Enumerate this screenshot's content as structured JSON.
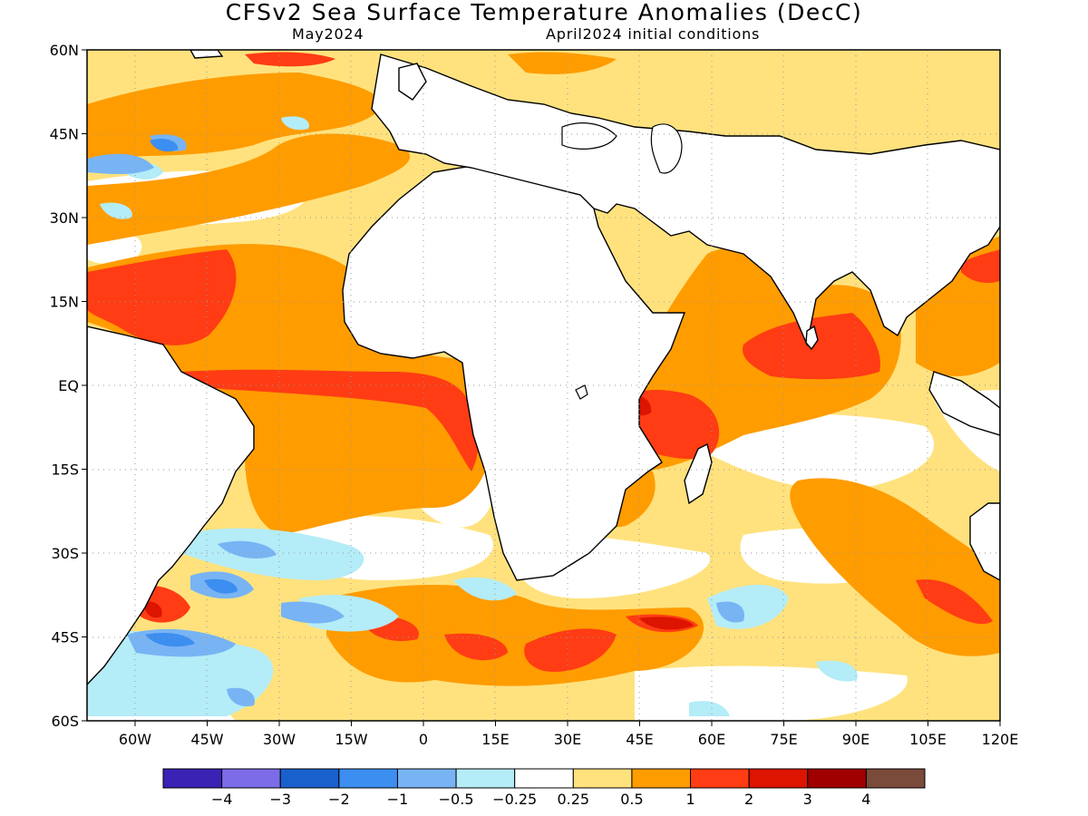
{
  "title": "CFSv2 Sea Surface Temperature Anomalies (DecC)",
  "subtitle_left": "May2024",
  "subtitle_right": "April2024 initial conditions",
  "map": {
    "projection": "equirectangular",
    "lon_range": [
      -70,
      120
    ],
    "lat_range": [
      -60,
      60
    ],
    "grid": "dotted",
    "lat_ticks": [
      {
        "value": 60,
        "label": "60N"
      },
      {
        "value": 45,
        "label": "45N"
      },
      {
        "value": 30,
        "label": "30N"
      },
      {
        "value": 15,
        "label": "15N"
      },
      {
        "value": 0,
        "label": "EQ"
      },
      {
        "value": -15,
        "label": "15S"
      },
      {
        "value": -30,
        "label": "30S"
      },
      {
        "value": -45,
        "label": "45S"
      },
      {
        "value": -60,
        "label": "60S"
      }
    ],
    "lon_ticks": [
      {
        "value": -60,
        "label": "60W"
      },
      {
        "value": -45,
        "label": "45W"
      },
      {
        "value": -30,
        "label": "30W"
      },
      {
        "value": -15,
        "label": "15W"
      },
      {
        "value": 0,
        "label": "0"
      },
      {
        "value": 15,
        "label": "15E"
      },
      {
        "value": 30,
        "label": "30E"
      },
      {
        "value": 45,
        "label": "45E"
      },
      {
        "value": 60,
        "label": "60E"
      },
      {
        "value": 75,
        "label": "75E"
      },
      {
        "value": 90,
        "label": "90E"
      },
      {
        "value": 105,
        "label": "105E"
      },
      {
        "value": 120,
        "label": "120E"
      }
    ]
  },
  "colorbar": {
    "colors": [
      "#3a22b5",
      "#7c6ce8",
      "#1a60cc",
      "#3c8ef0",
      "#78b4f4",
      "#b4ecf8",
      "#ffffff",
      "#ffe27e",
      "#ff9c00",
      "#ff3c14",
      "#dc1400",
      "#a00000",
      "#7a4a3a"
    ],
    "labels": [
      "−4",
      "−3",
      "−2",
      "−1",
      "−0.5",
      "−0.25",
      "0.25",
      "0.5",
      "1",
      "2",
      "3",
      "4"
    ]
  },
  "colors": {
    "land": "#ffffff",
    "ocean_background": "#ffe27e"
  }
}
